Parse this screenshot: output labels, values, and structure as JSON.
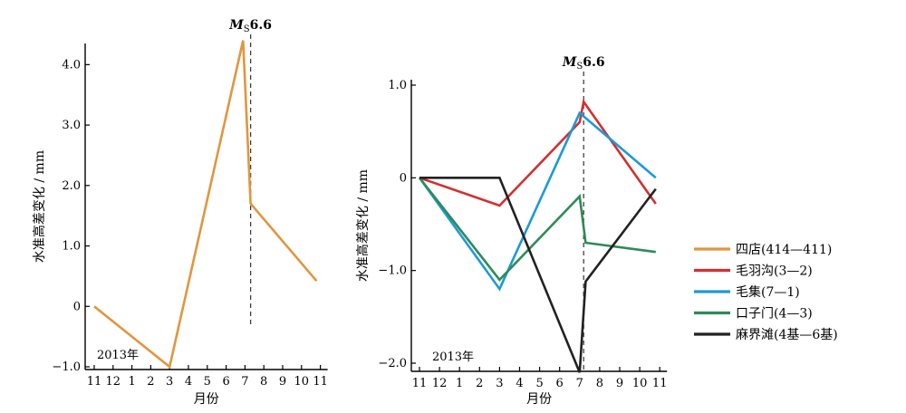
{
  "chart_data": [
    {
      "type": "line",
      "xlabel": "月份",
      "ylabel": "水准高差变化 / mm",
      "x_tick_labels": [
        "11",
        "12",
        "1",
        "2",
        "3",
        "4",
        "5",
        "6",
        "7",
        "8",
        "9",
        "10",
        "11"
      ],
      "x_start_label": "2013年",
      "ylim": [
        -1.0,
        4.5
      ],
      "yticks": [
        -1.0,
        0,
        1.0,
        2.0,
        3.0,
        4.0
      ],
      "ytick_labels": [
        "−1.0",
        "0",
        "1.0",
        "2.0",
        "3.0",
        "4.0"
      ],
      "event": {
        "x": 8.3,
        "label_main": "M",
        "label_sub": "S",
        "label_mag": "6.6"
      },
      "series": [
        {
          "name": "四店(414—411)",
          "color": "#E0963E",
          "points": [
            [
              0,
              0.0
            ],
            [
              4.0,
              -1.0
            ],
            [
              7.9,
              4.4
            ],
            [
              8.3,
              1.7
            ],
            [
              11.8,
              0.42
            ]
          ]
        }
      ]
    },
    {
      "type": "line",
      "xlabel": "月份",
      "ylabel": "水准高差变化 / mm",
      "x_tick_labels": [
        "11",
        "12",
        "1",
        "2",
        "3",
        "4",
        "5",
        "6",
        "7",
        "8",
        "9",
        "10",
        "11"
      ],
      "x_start_label": "2013年",
      "ylim": [
        -2.1,
        1.0
      ],
      "yticks": [
        -2.0,
        -1.0,
        0,
        1.0
      ],
      "ytick_labels": [
        "−2.0",
        "−1.0",
        "0",
        "1.0"
      ],
      "event": {
        "x": 8.2,
        "label_main": "M",
        "label_sub": "S",
        "label_mag": "6.6"
      },
      "series": [
        {
          "name": "四店(414—411)",
          "color": "#E0963E",
          "points": []
        },
        {
          "name": "毛羽沟(3—2)",
          "color": "#D42F2F",
          "points": [
            [
              0,
              0.0
            ],
            [
              4.0,
              -0.3
            ],
            [
              8.0,
              0.6
            ],
            [
              8.2,
              0.82
            ],
            [
              11.8,
              -0.28
            ]
          ]
        },
        {
          "name": "毛集(7—1)",
          "color": "#1C9AD6",
          "points": [
            [
              0,
              0.0
            ],
            [
              4.0,
              -1.2
            ],
            [
              8.0,
              0.7
            ],
            [
              11.8,
              0.0
            ]
          ]
        },
        {
          "name": "口子门(4—3)",
          "color": "#2E8B57",
          "points": [
            [
              0,
              0.0
            ],
            [
              4.0,
              -1.1
            ],
            [
              8.0,
              -0.2
            ],
            [
              8.3,
              -0.7
            ],
            [
              11.8,
              -0.8
            ]
          ]
        },
        {
          "name": "麻界滩(4基—6基)",
          "color": "#222222",
          "points": [
            [
              0,
              0.0
            ],
            [
              4.0,
              0.0
            ],
            [
              8.0,
              -2.1
            ],
            [
              8.3,
              -1.12
            ],
            [
              11.8,
              -0.12
            ]
          ]
        }
      ]
    }
  ]
}
